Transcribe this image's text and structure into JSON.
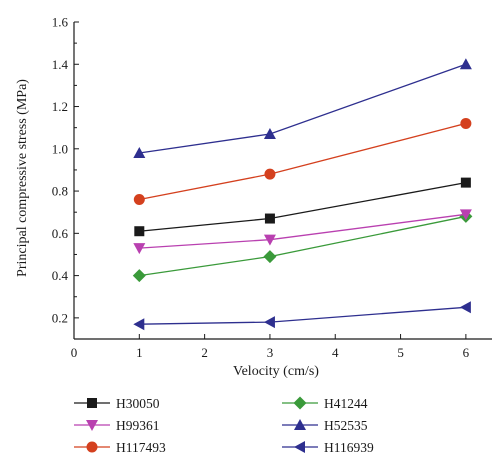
{
  "chart_data": {
    "type": "line",
    "title": "",
    "xlabel": "Velocity (cm/s)",
    "ylabel": "Principal compressive stress (MPa)",
    "xlim": [
      0,
      6.4
    ],
    "ylim": [
      0.1,
      1.6
    ],
    "xticks": [
      0,
      1,
      2,
      3,
      4,
      5,
      6
    ],
    "yticks": [
      0.2,
      0.4,
      0.6,
      0.8,
      1.0,
      1.2,
      1.4,
      1.6
    ],
    "ytick_labels": [
      "0.2",
      "0.4",
      "0.6",
      "0.8",
      "1.0",
      "1.2",
      "1.4",
      "1.6"
    ],
    "x": [
      1,
      3,
      6
    ],
    "grid": false,
    "legend_position": "bottom",
    "series": [
      {
        "name": "H30050",
        "values": [
          0.61,
          0.67,
          0.84
        ],
        "color": "#1a1a1a",
        "marker": "square"
      },
      {
        "name": "H41244",
        "values": [
          0.4,
          0.49,
          0.68
        ],
        "color": "#3a9a3a",
        "marker": "diamond"
      },
      {
        "name": "H99361",
        "values": [
          0.53,
          0.57,
          0.69
        ],
        "color": "#b940b0",
        "marker": "triangle-down"
      },
      {
        "name": "H52535",
        "values": [
          0.98,
          1.07,
          1.4
        ],
        "color": "#2e2f8f",
        "marker": "triangle-up"
      },
      {
        "name": "H117493",
        "values": [
          0.76,
          0.88,
          1.12
        ],
        "color": "#d4401e",
        "marker": "circle"
      },
      {
        "name": "H116939",
        "values": [
          0.17,
          0.18,
          0.25
        ],
        "color": "#2e2f8f",
        "marker": "triangle-left"
      }
    ]
  }
}
